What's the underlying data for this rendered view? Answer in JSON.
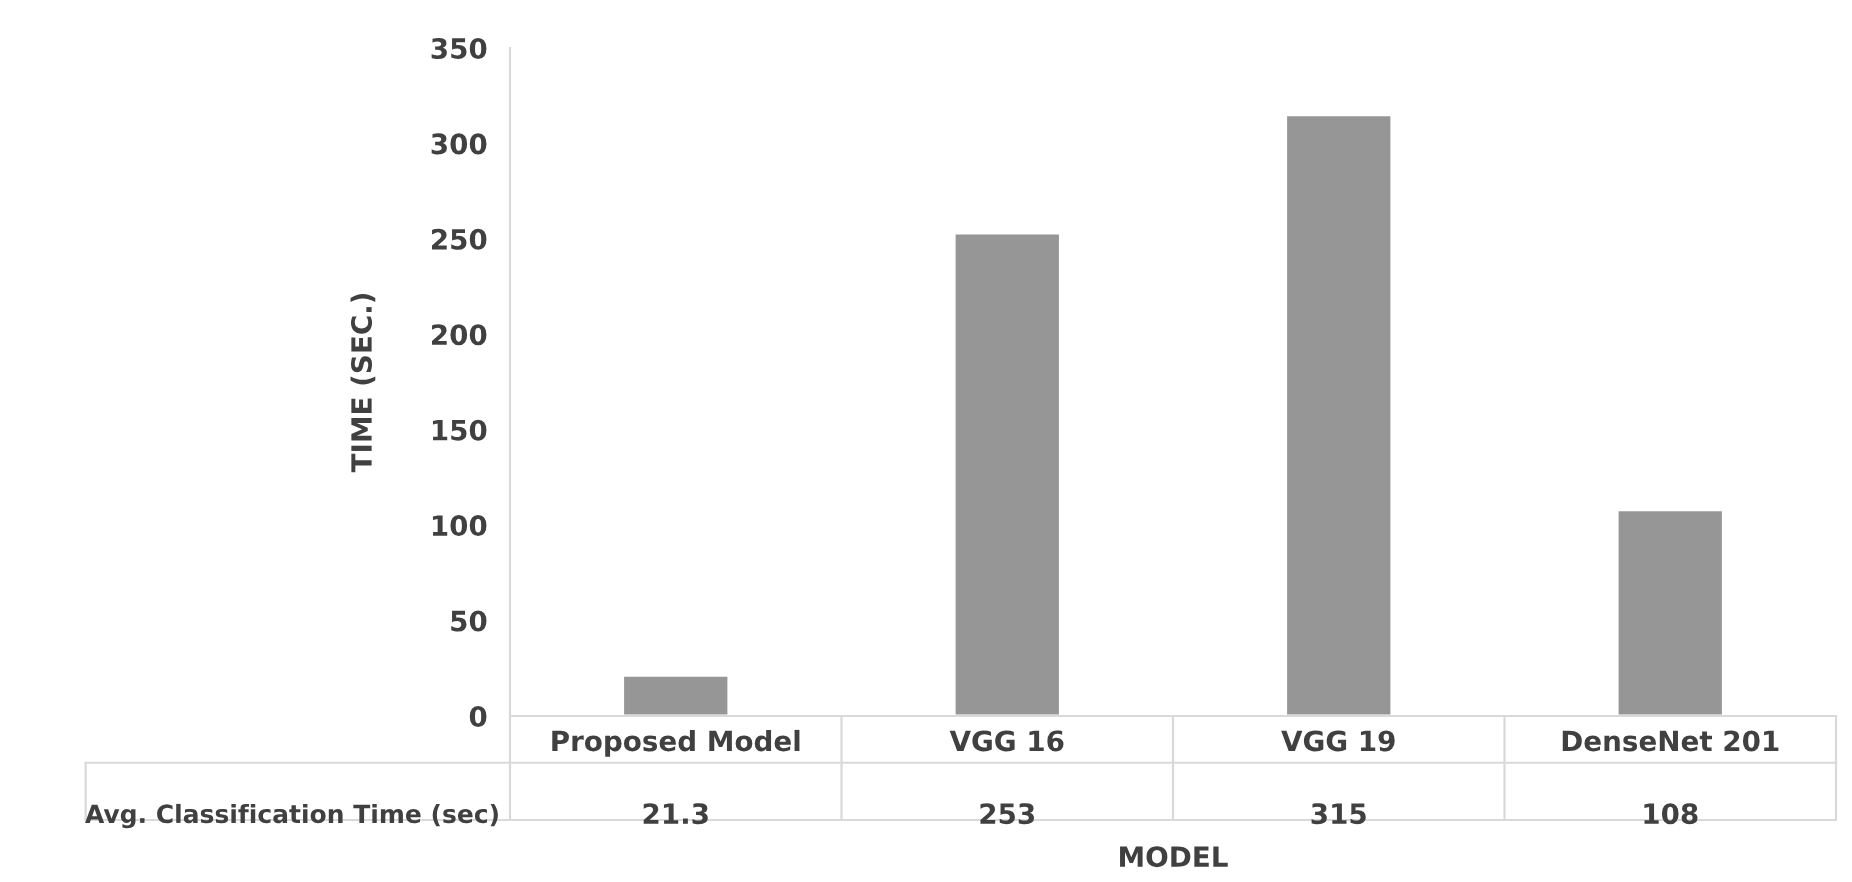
{
  "chart_data": {
    "type": "bar",
    "xlabel": "MODEL",
    "ylabel": "TIME (SEC.)",
    "categories": [
      "Proposed Model",
      "VGG 16",
      "VGG 19",
      "DenseNet 201"
    ],
    "series": [
      {
        "name": "Avg. Classification Time (sec)",
        "color": "#969696",
        "values": [
          21.3,
          253,
          315,
          108
        ]
      }
    ],
    "ylim": [
      0,
      350
    ],
    "yticks": [
      0,
      50,
      100,
      150,
      200,
      250,
      300,
      350
    ],
    "grid": false,
    "data_labels": true
  }
}
